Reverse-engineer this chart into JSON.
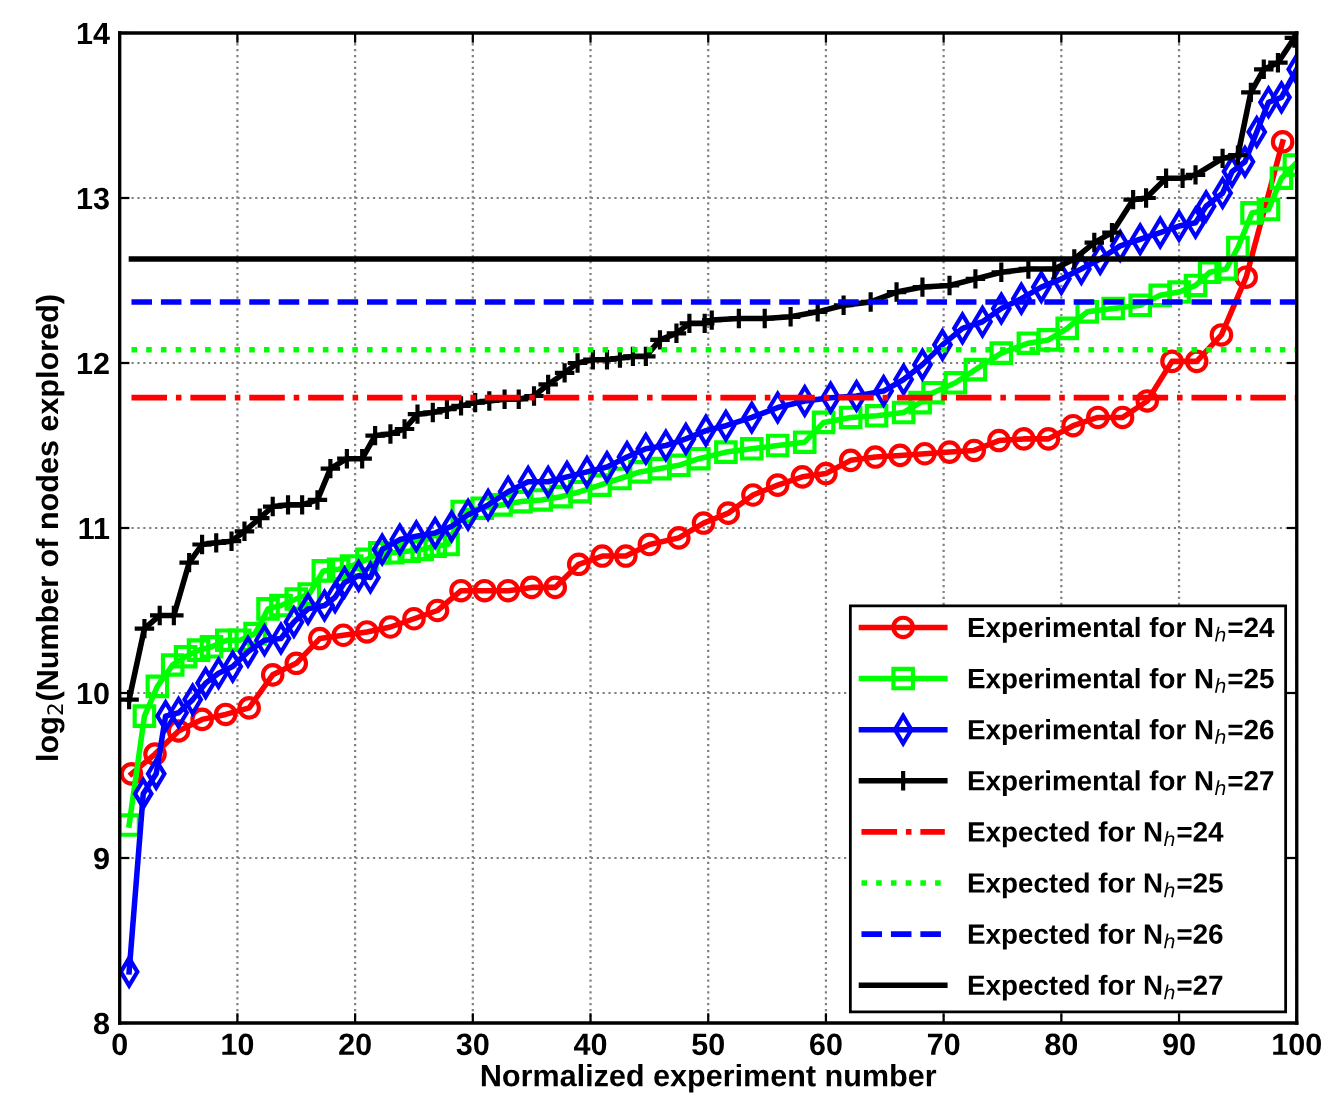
{
  "chart_data": {
    "type": "line",
    "xlabel": "Normalized experiment number",
    "ylabel": "log$_{2}$(Number of nodes explored)",
    "xlim": [
      0,
      100
    ],
    "xticks": [
      0,
      10,
      20,
      30,
      40,
      50,
      60,
      70,
      80,
      90,
      100
    ],
    "ylim": [
      8,
      14
    ],
    "yticks": [
      8,
      9,
      10,
      11,
      12,
      13,
      14
    ],
    "grid": true,
    "legend": "bottom right",
    "line_style": "solid",
    "series": [
      {
        "name": "Experimental for N$_{h}$=24",
        "color": "#ff0000",
        "marker": "circle",
        "x": [
          1,
          3,
          5,
          7,
          9,
          11,
          13,
          15,
          17,
          19,
          21,
          23,
          25,
          27,
          29,
          31,
          33,
          35,
          37,
          39,
          41,
          43,
          45,
          47.5,
          49.6,
          51.7,
          53.8,
          55.9,
          58,
          60,
          62.1,
          64.2,
          66.3,
          68.4,
          70.5,
          72.6,
          74.7,
          76.8,
          78.9,
          81,
          83.1,
          85.2,
          87.3,
          89.4,
          91.5,
          93.6,
          95.7,
          98.8
        ],
        "values": [
          9.51,
          9.63,
          9.77,
          9.84,
          9.87,
          9.91,
          10.11,
          10.18,
          10.33,
          10.35,
          10.37,
          10.4,
          10.45,
          10.5,
          10.62,
          10.62,
          10.62,
          10.64,
          10.64,
          10.78,
          10.83,
          10.83,
          10.9,
          10.94,
          11.03,
          11.09,
          11.2,
          11.26,
          11.31,
          11.33,
          11.41,
          11.43,
          11.44,
          11.45,
          11.46,
          11.47,
          11.53,
          11.54,
          11.54,
          11.62,
          11.67,
          11.67,
          11.77,
          12.01,
          12.01,
          12.17,
          12.52,
          13.34
        ]
      },
      {
        "name": "Experimental for N$_{h}$=25",
        "color": "#00ff00",
        "marker": "square",
        "x": [
          0.8,
          2.1,
          3.2,
          4.5,
          5.6,
          6.7,
          7.8,
          9.1,
          10.2,
          11.5,
          12.6,
          13.7,
          15,
          16.1,
          17.3,
          18.6,
          19.7,
          21,
          22.1,
          23.2,
          24.6,
          25.7,
          26.8,
          27.9,
          29.1,
          30.8,
          32.4,
          34.1,
          35.8,
          37.5,
          39.1,
          40.8,
          42.5,
          44.2,
          45.9,
          47.5,
          49.2,
          51.5,
          53.7,
          55.9,
          58.2,
          59.8,
          62.1,
          64.3,
          66.6,
          68,
          69.1,
          71,
          72.7,
          74.9,
          77.2,
          78.9,
          80.5,
          82.2,
          84.4,
          86.7,
          88.4,
          90,
          91.4,
          92.6,
          94,
          95,
          96.2,
          97.6,
          98.7,
          99.8
        ],
        "values": [
          9.2,
          9.86,
          10.04,
          10.17,
          10.22,
          10.26,
          10.28,
          10.32,
          10.32,
          10.36,
          10.51,
          10.53,
          10.57,
          10.6,
          10.74,
          10.75,
          10.77,
          10.81,
          10.85,
          10.85,
          10.86,
          10.87,
          10.89,
          10.9,
          11.1,
          11.12,
          11.14,
          11.16,
          11.17,
          11.19,
          11.22,
          11.26,
          11.3,
          11.34,
          11.36,
          11.38,
          11.42,
          11.46,
          11.48,
          11.5,
          11.52,
          11.64,
          11.67,
          11.68,
          11.7,
          11.76,
          11.82,
          11.88,
          11.96,
          12.06,
          12.12,
          12.14,
          12.21,
          12.31,
          12.33,
          12.35,
          12.41,
          12.43,
          12.47,
          12.55,
          12.57,
          12.7,
          12.91,
          12.93,
          13.12,
          13.2
        ]
      },
      {
        "name": "Experimental for N$_{h}$=26",
        "color": "#0000ff",
        "marker": "diamond",
        "x": [
          0.8,
          2,
          3.1,
          3.9,
          5,
          6.2,
          7.3,
          8.4,
          9.6,
          10.9,
          12.3,
          13.7,
          14.8,
          16,
          17.4,
          18.3,
          19.1,
          20.3,
          21.3,
          22.3,
          23.8,
          25.2,
          26.8,
          28.2,
          29.6,
          31.3,
          33,
          34.7,
          36.4,
          38,
          39.7,
          41.4,
          43.1,
          44.7,
          46.4,
          48.1,
          49.8,
          51.5,
          53.7,
          55.9,
          58.2,
          60.4,
          62.6,
          64.9,
          66.6,
          68.2,
          69.9,
          71.6,
          73.3,
          74.9,
          76.6,
          78.3,
          80,
          81.7,
          83.3,
          85,
          86.7,
          88.4,
          90,
          91.4,
          92.3,
          93.7,
          94.5,
          95.6,
          96.6,
          97.6,
          98.7,
          100
        ],
        "values": [
          8.31,
          9.39,
          9.51,
          9.86,
          9.88,
          9.96,
          10.06,
          10.12,
          10.16,
          10.25,
          10.32,
          10.33,
          10.43,
          10.51,
          10.53,
          10.58,
          10.67,
          10.71,
          10.7,
          10.87,
          10.93,
          10.95,
          10.97,
          11.01,
          11.08,
          11.14,
          11.22,
          11.28,
          11.28,
          11.31,
          11.34,
          11.37,
          11.43,
          11.48,
          11.5,
          11.54,
          11.59,
          11.62,
          11.67,
          11.73,
          11.77,
          11.79,
          11.8,
          11.83,
          11.9,
          11.99,
          12.11,
          12.21,
          12.25,
          12.33,
          12.39,
          12.46,
          12.51,
          12.57,
          12.63,
          12.71,
          12.75,
          12.79,
          12.83,
          12.85,
          12.95,
          13.03,
          13.16,
          13.22,
          13.4,
          13.58,
          13.61,
          13.78
        ]
      },
      {
        "name": "Experimental for N$_{h}$=27",
        "color": "#000000",
        "marker": "cross",
        "x": [
          0.8,
          2.1,
          3.4,
          4.6,
          5.9,
          7,
          8.2,
          9.5,
          10.6,
          11.9,
          13,
          14.3,
          15.5,
          16.8,
          17.9,
          19.3,
          20.6,
          21.7,
          23,
          24.2,
          25.3,
          26.6,
          27.8,
          29,
          30.2,
          31.4,
          32.7,
          33.9,
          35.2,
          36.4,
          37.8,
          38.9,
          40.2,
          41.4,
          42.5,
          43.6,
          44.7,
          45.9,
          47.3,
          48.4,
          49.7,
          50.3,
          52.6,
          54.8,
          57,
          59.3,
          61.5,
          63.8,
          66,
          68.2,
          70.5,
          72.7,
          74.9,
          77.2,
          79.4,
          81.1,
          82.8,
          84.3,
          86.1,
          87.2,
          88.9,
          90.3,
          91.4,
          93.7,
          95,
          96.1,
          97.2,
          98.4,
          99.8
        ],
        "values": [
          9.96,
          10.39,
          10.47,
          10.47,
          10.79,
          10.9,
          10.91,
          10.92,
          10.98,
          11.06,
          11.13,
          11.14,
          11.14,
          11.17,
          11.36,
          11.42,
          11.42,
          11.56,
          11.57,
          11.6,
          11.69,
          11.7,
          11.72,
          11.74,
          11.76,
          11.77,
          11.78,
          11.78,
          11.8,
          11.87,
          11.94,
          12,
          12.02,
          12.02,
          12.03,
          12.04,
          12.04,
          12.14,
          12.18,
          12.24,
          12.24,
          12.26,
          12.27,
          12.27,
          12.28,
          12.31,
          12.35,
          12.37,
          12.43,
          12.46,
          12.47,
          12.51,
          12.55,
          12.57,
          12.57,
          12.63,
          12.73,
          12.79,
          12.99,
          13,
          13.12,
          13.12,
          13.14,
          13.24,
          13.26,
          13.64,
          13.78,
          13.82,
          13.97
        ]
      },
      {
        "name": "Expected for N$_{h}$=24",
        "color": "#ff0000",
        "marker": "none",
        "line_style": "dashdot",
        "x": [
          1,
          100
        ],
        "values": [
          11.79,
          11.79
        ]
      },
      {
        "name": "Expected for N$_{h}$=25",
        "color": "#00ff00",
        "marker": "none",
        "line_style": "dotted",
        "x": [
          1,
          100
        ],
        "values": [
          12.08,
          12.08
        ]
      },
      {
        "name": "Expected for N$_{h}$=26",
        "color": "#0000ff",
        "marker": "none",
        "line_style": "dashed",
        "x": [
          1,
          100
        ],
        "values": [
          12.37,
          12.37
        ]
      },
      {
        "name": "Expected for N$_{h}$=27",
        "color": "#000000",
        "marker": "none",
        "line_style": "solid",
        "x": [
          1,
          100
        ],
        "values": [
          12.63,
          12.63
        ]
      }
    ]
  }
}
